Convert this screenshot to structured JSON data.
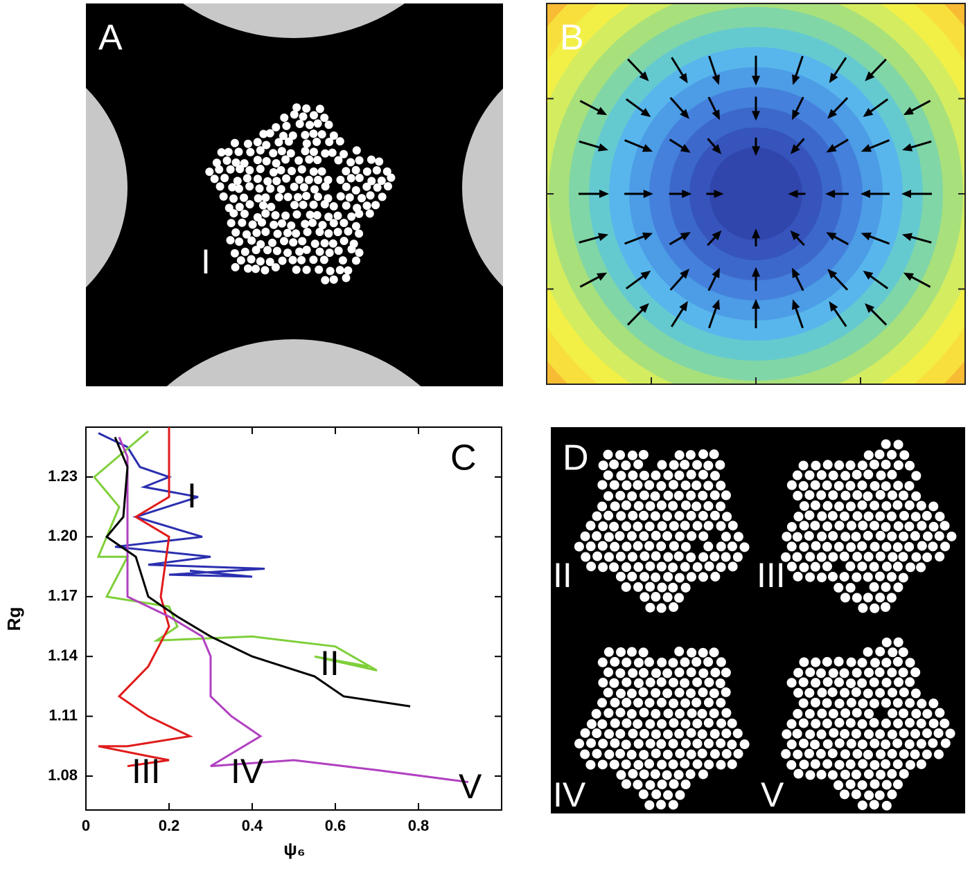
{
  "panel_a": {
    "label": "A",
    "annotation": "I"
  },
  "panel_b": {
    "label": "B"
  },
  "panel_d": {
    "label": "D",
    "annotations": [
      "II",
      "III",
      "IV",
      "V"
    ]
  },
  "chart_data": {
    "type": "line",
    "panel_label": "C",
    "x_label": "ψ₆",
    "y_label": "Rg",
    "xlim": [
      0,
      1.0
    ],
    "ylim": [
      1.063,
      1.255
    ],
    "xticks": [
      0,
      0.2,
      0.4,
      0.6,
      0.8
    ],
    "yticks": [
      1.08,
      1.11,
      1.14,
      1.17,
      {
        "value": 1.2,
        "label": "1.20"
      },
      1.23
    ],
    "annotations": [
      "I",
      "II",
      "III",
      "IV",
      "V"
    ],
    "series": [
      {
        "color": "#2b2fb0",
        "x": [
          0.03,
          0.1,
          0.13,
          0.2,
          0.14,
          0.27,
          0.12,
          0.28,
          0.07,
          0.3,
          0.15,
          0.43,
          0.2,
          0.4,
          0.25
        ],
        "values": [
          1.252,
          1.245,
          1.235,
          1.23,
          1.225,
          1.22,
          1.21,
          1.2,
          1.195,
          1.19,
          1.186,
          1.184,
          1.181,
          1.18,
          1.183
        ]
      },
      {
        "color": "#7fcf3a",
        "x": [
          0.15,
          0.02,
          0.08,
          0.03,
          0.1,
          0.05,
          0.2,
          0.22,
          0.17,
          0.4,
          0.6,
          0.7,
          0.55,
          0.68
        ],
        "values": [
          1.253,
          1.23,
          1.215,
          1.19,
          1.19,
          1.17,
          1.165,
          1.155,
          1.148,
          1.15,
          1.145,
          1.133,
          1.14,
          1.135
        ]
      },
      {
        "color": "#e01a1a",
        "x": [
          0.2,
          0.2,
          0.12,
          0.2,
          0.18,
          0.2,
          0.15,
          0.08,
          0.15,
          0.2,
          0.25,
          0.1,
          0.03,
          0.15,
          0.2,
          0.1
        ],
        "values": [
          1.255,
          1.22,
          1.21,
          1.2,
          1.17,
          1.155,
          1.135,
          1.12,
          1.11,
          1.105,
          1.1,
          1.095,
          1.095,
          1.09,
          1.088,
          1.085
        ]
      },
      {
        "color": "#b040c0",
        "x": [
          0.08,
          0.1,
          0.1,
          0.1,
          0.2,
          0.28,
          0.3,
          0.3,
          0.35,
          0.42,
          0.3,
          0.5,
          0.7,
          0.92
        ],
        "values": [
          1.25,
          1.24,
          1.2,
          1.17,
          1.16,
          1.15,
          1.14,
          1.12,
          1.11,
          1.1,
          1.085,
          1.088,
          1.083,
          1.077
        ]
      },
      {
        "color": "#000000",
        "x": [
          0.07,
          0.1,
          0.09,
          0.05,
          0.12,
          0.15,
          0.22,
          0.3,
          0.4,
          0.55,
          0.62,
          0.78
        ],
        "values": [
          1.25,
          1.235,
          1.21,
          1.2,
          1.19,
          1.17,
          1.16,
          1.15,
          1.14,
          1.13,
          1.12,
          1.115
        ]
      }
    ]
  }
}
